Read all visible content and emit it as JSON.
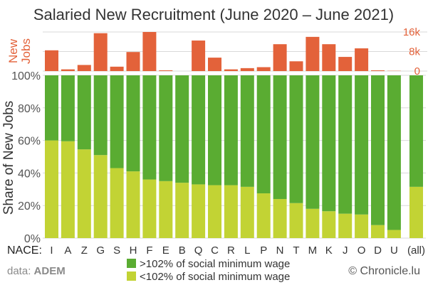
{
  "title": "Salaried New Recruitment (June 2020 – June 2021)",
  "nace_label": "NACE:",
  "source_prefix": "data: ",
  "source_name": "ADEM",
  "credit": "© Chronicle.lu",
  "colors": {
    "high": "#5aac32",
    "low": "#c2d334",
    "jobs": "#e3623a",
    "grid": "#d9d9d9"
  },
  "chart_data": [
    {
      "type": "bar",
      "ylabel": "New\nJobs",
      "yticks": [
        "0",
        "8k",
        "16k"
      ],
      "ylim": [
        0,
        16000
      ],
      "categories": [
        "I",
        "A",
        "Z",
        "G",
        "S",
        "H",
        "F",
        "E",
        "B",
        "Q",
        "C",
        "R",
        "L",
        "P",
        "N",
        "T",
        "M",
        "K",
        "J",
        "O",
        "D",
        "U",
        "(all)"
      ],
      "values": [
        8500,
        700,
        2500,
        15500,
        1800,
        7800,
        16000,
        300,
        0,
        12500,
        5500,
        700,
        1200,
        1600,
        11000,
        4000,
        14000,
        11000,
        5800,
        9300,
        300,
        100,
        null
      ]
    },
    {
      "type": "bar",
      "stacked": true,
      "ylabel": "Share of New Jobs",
      "yticks": [
        "0%",
        "20%",
        "40%",
        "60%",
        "80%",
        "100%"
      ],
      "ylim": [
        0,
        100
      ],
      "categories": [
        "I",
        "A",
        "Z",
        "G",
        "S",
        "H",
        "F",
        "E",
        "B",
        "Q",
        "C",
        "R",
        "L",
        "P",
        "N",
        "T",
        "M",
        "K",
        "J",
        "O",
        "D",
        "U",
        "(all)"
      ],
      "series": [
        {
          "name": "<102% of social minimum wage",
          "values": [
            60,
            59.5,
            54.5,
            51,
            43,
            41,
            36,
            35,
            34,
            33,
            32.5,
            32.5,
            31.5,
            27.5,
            24,
            21.5,
            18,
            16.5,
            15,
            14.5,
            8,
            5,
            31.5
          ]
        },
        {
          "name": ">102% of social minimum wage",
          "values": [
            40,
            40.5,
            45.5,
            49,
            57,
            59,
            64,
            65,
            66,
            67,
            67.5,
            67.5,
            68.5,
            72.5,
            76,
            78.5,
            82,
            83.5,
            85,
            85.5,
            92,
            95,
            68.5
          ]
        }
      ]
    }
  ]
}
